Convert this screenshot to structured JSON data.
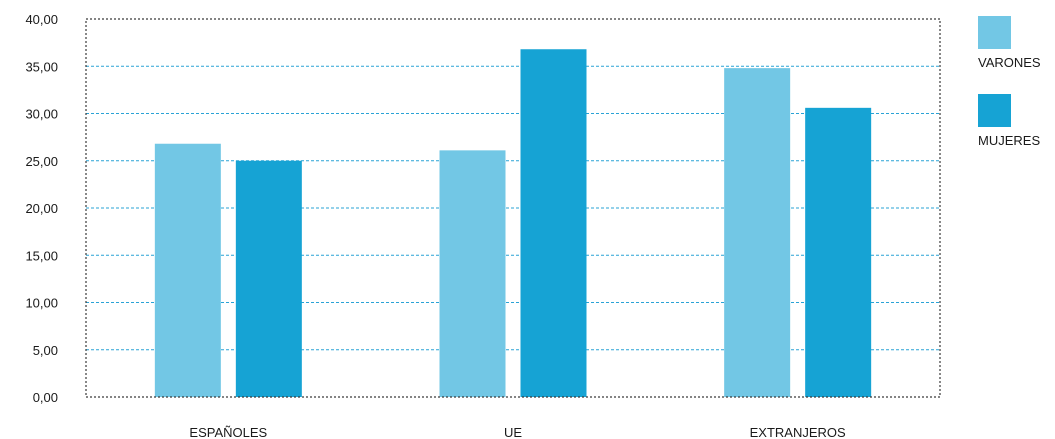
{
  "colors": {
    "varones": "#72c7e5",
    "mujeres": "#16a3d4",
    "grid": "#2aa3d6",
    "frame": "#3a3a3a"
  },
  "chart_data": {
    "type": "bar",
    "categories": [
      "ESPAÑOLES",
      "UE",
      "EXTRANJEROS"
    ],
    "series": [
      {
        "name": "VARONES",
        "values": [
          26.8,
          26.1,
          34.8
        ]
      },
      {
        "name": "MUJERES",
        "values": [
          25.0,
          36.8,
          30.6
        ]
      }
    ],
    "yticks": [
      "0,00",
      "5,00",
      "10,00",
      "15,00",
      "20,00",
      "25,00",
      "30,00",
      "35,00",
      "40,00"
    ],
    "ylim": [
      0,
      40
    ],
    "grid": true,
    "legend_position": "right"
  },
  "legend": {
    "items": [
      "VARONES",
      "MUJERES"
    ]
  }
}
